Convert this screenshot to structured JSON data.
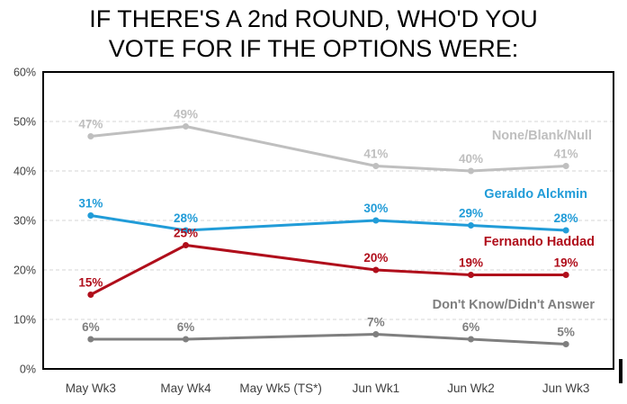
{
  "title_lines": [
    "IF THERE'S A 2nd ROUND, WHO'D YOU",
    "VOTE FOR IF THE OPTIONS WERE:"
  ],
  "chart_data": {
    "type": "line",
    "categories": [
      "May Wk3",
      "May Wk4",
      "May Wk5 (TS*)",
      "Jun Wk1",
      "Jun Wk2",
      "Jun Wk3"
    ],
    "series": [
      {
        "name": "None/Blank/Null",
        "color": "#BFBFBF",
        "values": [
          47,
          49,
          null,
          41,
          40,
          41
        ]
      },
      {
        "name": "Geraldo Alckmin",
        "color": "#219CD8",
        "values": [
          31,
          28,
          null,
          30,
          29,
          28
        ]
      },
      {
        "name": "Fernando Haddad",
        "color": "#B00E1B",
        "values": [
          15,
          25,
          null,
          20,
          19,
          19
        ]
      },
      {
        "name": "Don't Know/Didn't Answer",
        "color": "#7F7F7F",
        "values": [
          6,
          6,
          null,
          7,
          6,
          5
        ]
      }
    ],
    "ylim": [
      0,
      60
    ],
    "ytick_step": 10,
    "ytick_labels": [
      "0%",
      "10%",
      "20%",
      "30%",
      "40%",
      "50%",
      "60%"
    ],
    "value_suffix": "%",
    "grid": "horizontal-dashed",
    "gridline_color": "#D6D6D6",
    "plot_border_color": "#000000",
    "axis_text_color": "#404040",
    "legend_position": "inline-right"
  }
}
